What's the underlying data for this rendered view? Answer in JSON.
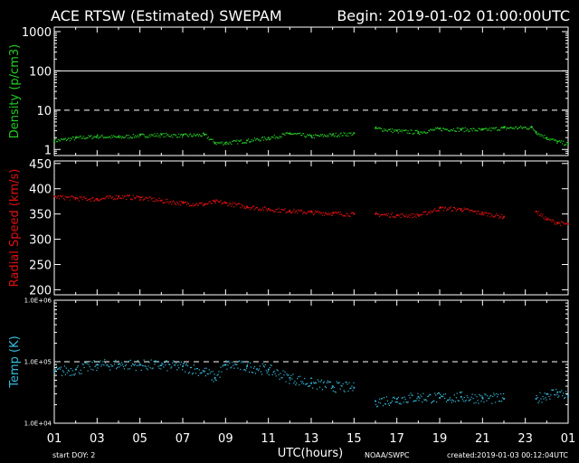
{
  "header": {
    "title": "ACE RTSW (Estimated) SWEPAM",
    "begin": "Begin: 2019-01-02 01:00:00UTC"
  },
  "footer": {
    "start_doy": "start DOY:  2",
    "xlabel": "UTC(hours)",
    "agency": "NOAA/SWPC",
    "created": "created:2019-01-03 00:12:04UTC"
  },
  "colors": {
    "background": "#000000",
    "axes": "#ffffff",
    "density": "#22cc22",
    "speed": "#e01010",
    "temp": "#33bbdd"
  },
  "chart_data": [
    {
      "type": "scatter",
      "name": "density",
      "ylabel": "Density (p/cm3)",
      "yscale": "log",
      "ylim": [
        0.7,
        1300
      ],
      "yticks": [
        1,
        10,
        100,
        1000
      ],
      "ytick_labels": [
        "1",
        "10",
        "100",
        "1000"
      ],
      "reference_lines": [
        {
          "y": 100,
          "style": "solid"
        },
        {
          "y": 10,
          "style": "dashed"
        }
      ],
      "x_hours": [
        0,
        1,
        2,
        3,
        4,
        5,
        6,
        7,
        7.5,
        8,
        9,
        10,
        11,
        12,
        13,
        14,
        14.5,
        15,
        16,
        17,
        18,
        19,
        20,
        21,
        22.3,
        22.5,
        23,
        23.5,
        24
      ],
      "values": [
        1.7,
        2.0,
        2.2,
        2.1,
        2.3,
        2.4,
        2.3,
        2.4,
        1.5,
        1.5,
        1.7,
        2.0,
        2.6,
        2.2,
        2.4,
        2.6,
        null,
        3.5,
        3.0,
        2.8,
        3.4,
        3.3,
        3.2,
        3.6,
        3.7,
        2.8,
        2.0,
        1.6,
        1.4
      ]
    },
    {
      "type": "scatter",
      "name": "speed",
      "ylabel": "Radial Speed (km/s)",
      "yscale": "linear",
      "ylim": [
        190,
        455
      ],
      "yticks": [
        200,
        250,
        300,
        350,
        400,
        450
      ],
      "ytick_labels": [
        "200",
        "250",
        "300",
        "350",
        "400",
        "450"
      ],
      "x_hours": [
        0,
        1,
        2,
        3,
        4,
        5,
        6,
        7,
        7.5,
        8,
        9,
        10,
        11,
        12,
        13,
        14,
        14.5,
        15,
        16,
        17,
        18,
        19,
        20,
        21,
        22.3,
        22.5,
        23,
        23.5,
        24
      ],
      "values": [
        385,
        382,
        380,
        385,
        383,
        377,
        372,
        370,
        375,
        372,
        365,
        360,
        357,
        354,
        352,
        350,
        null,
        350,
        348,
        348,
        362,
        360,
        352,
        345,
        null,
        355,
        340,
        333,
        330
      ]
    },
    {
      "type": "scatter",
      "name": "temp",
      "ylabel": "Temp (K)",
      "yscale": "log",
      "ylim": [
        10000,
        1000000
      ],
      "yticks": [
        10000,
        100000,
        1000000
      ],
      "ytick_labels": [
        "1.0E+04",
        "1.0E+05",
        "1.0E+06"
      ],
      "reference_lines": [
        {
          "y": 100000,
          "style": "dashed"
        }
      ],
      "x_hours": [
        0,
        1,
        2,
        3,
        4,
        5,
        6,
        7,
        7.5,
        8,
        9,
        10,
        11,
        12,
        13,
        14,
        14.5,
        15,
        16,
        17,
        18,
        19,
        20,
        21,
        22.3,
        22.5,
        23,
        23.5,
        24
      ],
      "values": [
        70000,
        75000,
        90000,
        92000,
        90000,
        88000,
        85000,
        70000,
        55000,
        90000,
        85000,
        75000,
        55000,
        45000,
        40000,
        38000,
        null,
        23000,
        25000,
        27000,
        26000,
        27000,
        26000,
        25000,
        null,
        25000,
        30000,
        32000,
        28000
      ]
    }
  ],
  "xaxis": {
    "range_hours": [
      0,
      24
    ],
    "tick_labels": [
      "01",
      "03",
      "05",
      "07",
      "09",
      "11",
      "13",
      "15",
      "17",
      "19",
      "21",
      "23",
      "01"
    ]
  }
}
